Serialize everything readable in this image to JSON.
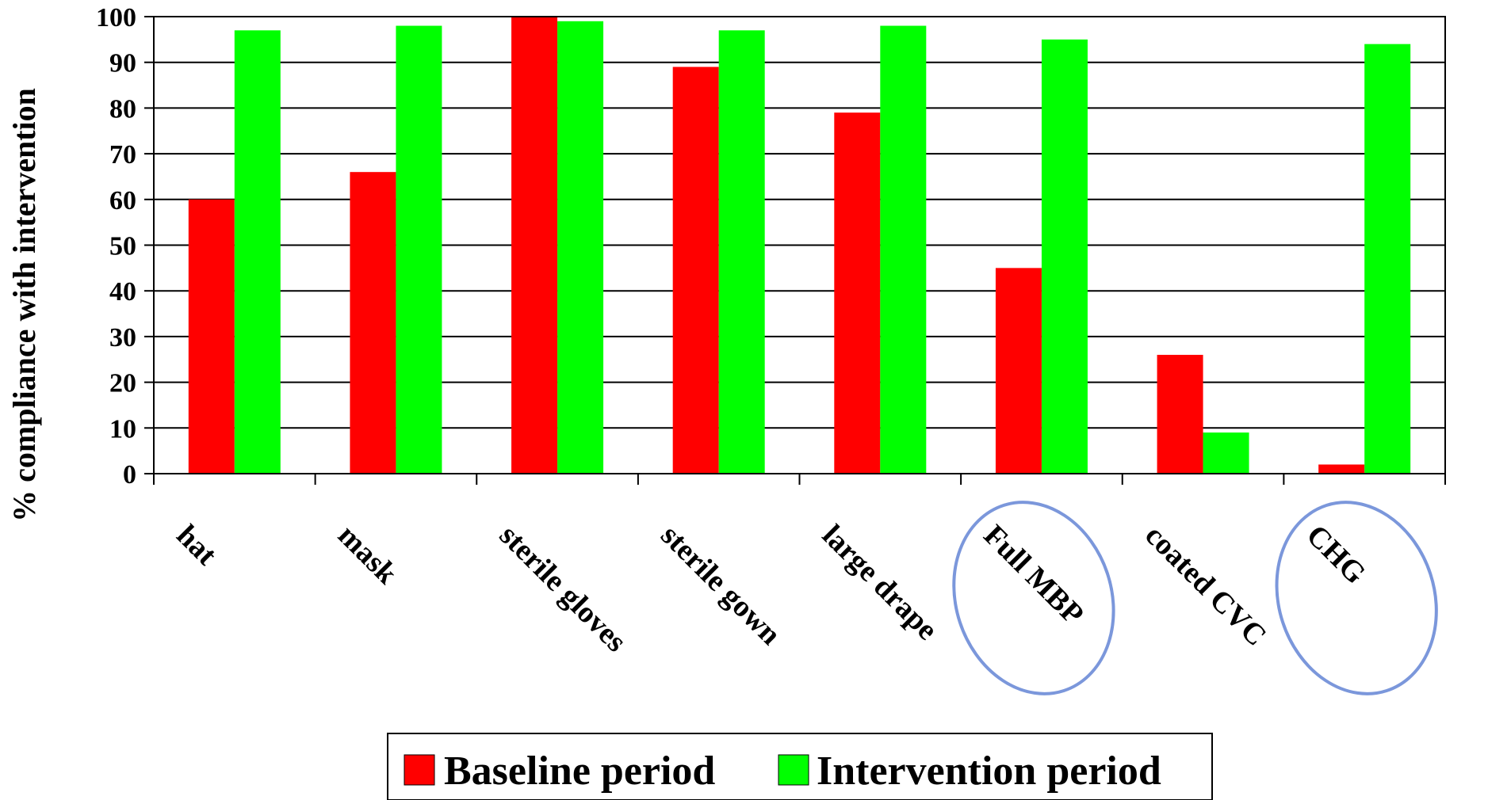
{
  "chart_data": {
    "type": "bar",
    "categories": [
      "hat",
      "mask",
      "sterile gloves",
      "sterile gown",
      "large drape",
      "Full MBP",
      "coated CVC",
      "CHG"
    ],
    "series": [
      {
        "name": "Baseline period",
        "color": "#ff0000",
        "values": [
          60,
          66,
          100,
          89,
          79,
          45,
          26,
          2
        ]
      },
      {
        "name": "Intervention period",
        "color": "#00ff00",
        "values": [
          97,
          98,
          99,
          97,
          98,
          95,
          9,
          94
        ]
      }
    ],
    "title": "",
    "xlabel": "",
    "ylabel": "% compliance with intervention",
    "ylim": [
      0,
      100
    ],
    "yticks": [
      0,
      10,
      20,
      30,
      40,
      50,
      60,
      70,
      80,
      90,
      100
    ],
    "grid": true,
    "legend": "bottom",
    "highlighted_categories": [
      "Full MBP",
      "CHG"
    ],
    "highlight_color": "#7b97db"
  }
}
